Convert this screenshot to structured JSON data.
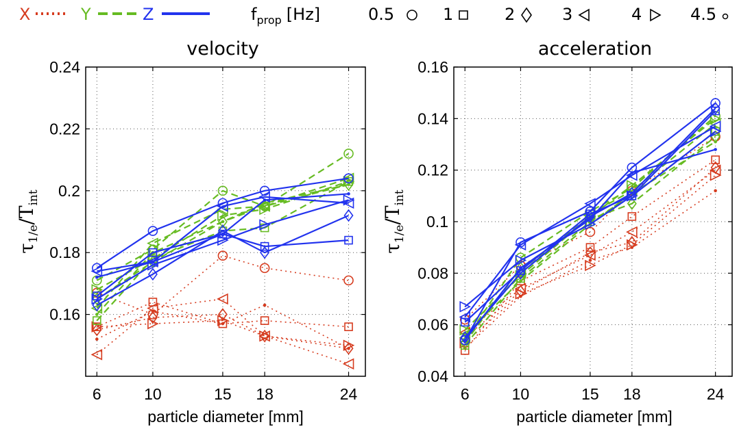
{
  "legend": {
    "items": [
      {
        "label": "X",
        "color": "#d63b1e",
        "style": "dotted"
      },
      {
        "label": "Y",
        "color": "#66bb22",
        "style": "dashed"
      },
      {
        "label": "Z",
        "color": "#2233ee",
        "style": "solid"
      }
    ],
    "freq_label": "f",
    "freq_sub": "prop",
    "freq_unit": "[Hz]",
    "markers": [
      {
        "label": "0.5",
        "marker": "circle"
      },
      {
        "label": "1",
        "marker": "square"
      },
      {
        "label": "2",
        "marker": "diamond"
      },
      {
        "label": "3",
        "marker": "triangle-left"
      },
      {
        "label": "4",
        "marker": "triangle-right"
      },
      {
        "label": "4.5",
        "marker": "dot"
      }
    ]
  },
  "chart_data": [
    {
      "type": "line",
      "title": "velocity",
      "xlabel": "particle diameter [mm]",
      "ylabel": "τ1/e/Tint",
      "x": [
        6,
        10,
        15,
        18,
        24
      ],
      "xlim": [
        5.2,
        25.2
      ],
      "ylim": [
        0.14,
        0.24
      ],
      "yticks": [
        0.16,
        0.18,
        0.2,
        0.22,
        0.24
      ],
      "ytick_labels": [
        "0.16",
        "0.18",
        "0.2",
        "0.22",
        "0.24"
      ],
      "xtick_labels": [
        "6",
        "10",
        "15",
        "18",
        "24"
      ],
      "grid": true,
      "series": [
        {
          "component": "X",
          "freq": "0.5",
          "values": [
            0.167,
            0.16,
            0.179,
            0.175,
            0.171
          ]
        },
        {
          "component": "X",
          "freq": "1",
          "values": [
            0.156,
            0.164,
            0.157,
            0.158,
            0.156
          ]
        },
        {
          "component": "X",
          "freq": "2",
          "values": [
            0.155,
            0.159,
            0.16,
            0.153,
            0.149
          ]
        },
        {
          "component": "X",
          "freq": "3",
          "values": [
            0.147,
            0.162,
            0.165,
            0.153,
            0.144
          ]
        },
        {
          "component": "X",
          "freq": "4",
          "values": [
            0.156,
            0.157,
            0.158,
            0.153,
            0.15
          ]
        },
        {
          "component": "X",
          "freq": "4.5",
          "values": [
            0.152,
            0.161,
            0.157,
            0.163,
            0.149
          ]
        },
        {
          "component": "Y",
          "freq": "0.5",
          "values": [
            0.171,
            0.181,
            0.2,
            0.195,
            0.212
          ]
        },
        {
          "component": "Y",
          "freq": "1",
          "values": [
            0.158,
            0.178,
            0.187,
            0.188,
            0.203
          ]
        },
        {
          "component": "Y",
          "freq": "2",
          "values": [
            0.165,
            0.177,
            0.19,
            0.195,
            0.202
          ]
        },
        {
          "component": "Y",
          "freq": "3",
          "values": [
            0.162,
            0.183,
            0.194,
            0.195,
            0.204
          ]
        },
        {
          "component": "Y",
          "freq": "4",
          "values": [
            0.168,
            0.178,
            0.192,
            0.194,
            0.203
          ]
        },
        {
          "component": "Y",
          "freq": "4.5",
          "values": [
            0.16,
            0.18,
            0.19,
            0.196,
            0.202
          ]
        },
        {
          "component": "Z",
          "freq": "0.5",
          "values": [
            0.175,
            0.187,
            0.196,
            0.2,
            0.204
          ]
        },
        {
          "component": "Z",
          "freq": "1",
          "values": [
            0.166,
            0.18,
            0.186,
            0.182,
            0.184
          ]
        },
        {
          "component": "Z",
          "freq": "2",
          "values": [
            0.163,
            0.173,
            0.187,
            0.18,
            0.192
          ]
        },
        {
          "component": "Z",
          "freq": "3",
          "values": [
            0.174,
            0.177,
            0.195,
            0.198,
            0.196
          ]
        },
        {
          "component": "Z",
          "freq": "4",
          "values": [
            0.165,
            0.176,
            0.184,
            0.189,
            0.197
          ]
        },
        {
          "component": "Z",
          "freq": "4.5",
          "values": [
            0.172,
            0.177,
            0.186,
            0.197,
            0.199
          ]
        }
      ]
    },
    {
      "type": "line",
      "title": "acceleration",
      "xlabel": "particle diameter [mm]",
      "ylabel": "τ1/e/Tint",
      "x": [
        6,
        10,
        15,
        18,
        24
      ],
      "xlim": [
        5.2,
        25.2
      ],
      "ylim": [
        0.04,
        0.16
      ],
      "yticks": [
        0.04,
        0.06,
        0.08,
        0.1,
        0.12,
        0.14,
        0.16
      ],
      "ytick_labels": [
        "0.04",
        "0.06",
        "0.08",
        "0.1",
        "0.12",
        "0.14",
        "0.16"
      ],
      "xtick_labels": [
        "6",
        "10",
        "15",
        "18",
        "24"
      ],
      "grid": true,
      "series": [
        {
          "component": "X",
          "freq": "0.5",
          "values": [
            0.062,
            0.083,
            0.096,
            0.112,
            0.133
          ]
        },
        {
          "component": "X",
          "freq": "1",
          "values": [
            0.05,
            0.077,
            0.09,
            0.102,
            0.124
          ]
        },
        {
          "component": "X",
          "freq": "2",
          "values": [
            0.055,
            0.073,
            0.088,
            0.092,
            0.121
          ]
        },
        {
          "component": "X",
          "freq": "3",
          "values": [
            0.057,
            0.074,
            0.087,
            0.096,
            0.12
          ]
        },
        {
          "component": "X",
          "freq": "4",
          "values": [
            0.053,
            0.072,
            0.083,
            0.091,
            0.118
          ]
        },
        {
          "component": "X",
          "freq": "4.5",
          "values": [
            0.051,
            0.071,
            0.085,
            0.09,
            0.112
          ]
        },
        {
          "component": "Y",
          "freq": "0.5",
          "values": [
            0.054,
            0.086,
            0.104,
            0.113,
            0.141
          ]
        },
        {
          "component": "Y",
          "freq": "1",
          "values": [
            0.052,
            0.078,
            0.1,
            0.11,
            0.135
          ]
        },
        {
          "component": "Y",
          "freq": "2",
          "values": [
            0.053,
            0.082,
            0.101,
            0.107,
            0.133
          ]
        },
        {
          "component": "Y",
          "freq": "3",
          "values": [
            0.055,
            0.08,
            0.103,
            0.112,
            0.138
          ]
        },
        {
          "component": "Y",
          "freq": "4",
          "values": [
            0.058,
            0.079,
            0.102,
            0.114,
            0.14
          ]
        },
        {
          "component": "Y",
          "freq": "4.5",
          "values": [
            0.056,
            0.077,
            0.099,
            0.111,
            0.131
          ]
        },
        {
          "component": "Z",
          "freq": "0.5",
          "values": [
            0.054,
            0.092,
            0.104,
            0.121,
            0.146
          ]
        },
        {
          "component": "Z",
          "freq": "1",
          "values": [
            0.061,
            0.081,
            0.103,
            0.11,
            0.143
          ]
        },
        {
          "component": "Z",
          "freq": "2",
          "values": [
            0.055,
            0.08,
            0.102,
            0.111,
            0.144
          ]
        },
        {
          "component": "Z",
          "freq": "3",
          "values": [
            0.063,
            0.091,
            0.107,
            0.118,
            0.137
          ]
        },
        {
          "component": "Z",
          "freq": "4",
          "values": [
            0.067,
            0.085,
            0.099,
            0.11,
            0.135
          ]
        },
        {
          "component": "Z",
          "freq": "4.5",
          "values": [
            0.054,
            0.082,
            0.101,
            0.119,
            0.128
          ]
        }
      ]
    }
  ]
}
